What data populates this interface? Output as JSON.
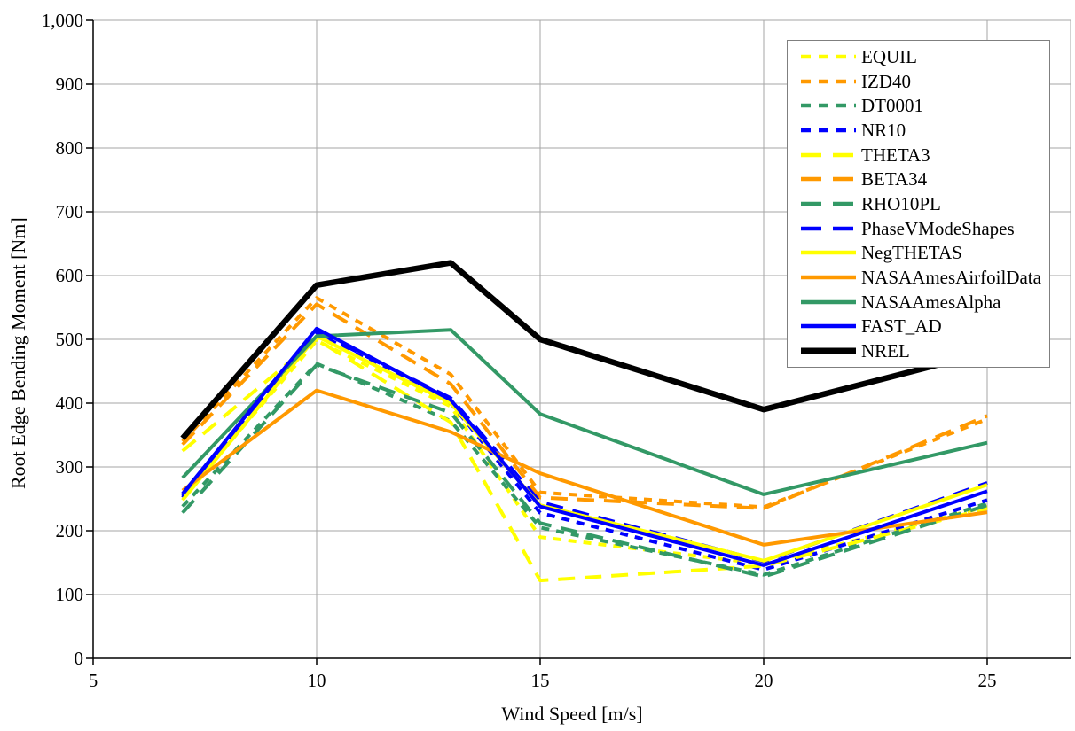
{
  "chart_data": {
    "type": "line",
    "title": "",
    "xlabel": "Wind Speed [m/s]",
    "ylabel": "Root Edge Bending Moment [Nm]",
    "x": [
      7,
      10,
      13,
      15,
      20,
      25
    ],
    "xlim": [
      5,
      27
    ],
    "ylim": [
      0,
      1000
    ],
    "x_ticks": [
      "5",
      "10",
      "15",
      "20",
      "25"
    ],
    "x_tick_values": [
      5,
      10,
      15,
      20,
      25
    ],
    "y_ticks": [
      "0",
      "100",
      "200",
      "300",
      "400",
      "500",
      "600",
      "700",
      "800",
      "900",
      "1,000"
    ],
    "y_tick_values": [
      0,
      100,
      200,
      300,
      400,
      500,
      600,
      700,
      800,
      900,
      1000
    ],
    "grid": true,
    "legend_position": "top-right",
    "gridline_color": "#a6a6a6",
    "axis_color": "#000000",
    "series": [
      {
        "name": "EQUIL",
        "color": "#ffff00",
        "dash": "short",
        "width": 4,
        "values": [
          252,
          498,
          395,
          190,
          148,
          238
        ]
      },
      {
        "name": "IZD40",
        "color": "#ff9900",
        "dash": "short",
        "width": 4,
        "values": [
          340,
          565,
          445,
          260,
          237,
          375
        ]
      },
      {
        "name": "DT0001",
        "color": "#339966",
        "dash": "short",
        "width": 4,
        "values": [
          238,
          462,
          372,
          205,
          131,
          243
        ]
      },
      {
        "name": "NR10",
        "color": "#0000ff",
        "dash": "short",
        "width": 4,
        "values": [
          252,
          510,
          400,
          228,
          139,
          248
        ]
      },
      {
        "name": "THETA3",
        "color": "#ffff00",
        "dash": "long",
        "width": 4,
        "values": [
          325,
          500,
          370,
          122,
          145,
          235
        ]
      },
      {
        "name": "BETA34",
        "color": "#ff9900",
        "dash": "long",
        "width": 4,
        "values": [
          335,
          555,
          430,
          252,
          235,
          380
        ]
      },
      {
        "name": "RHO10PL",
        "color": "#339966",
        "dash": "long",
        "width": 4,
        "values": [
          228,
          460,
          385,
          212,
          128,
          240
        ]
      },
      {
        "name": "PhaseVModeShapes",
        "color": "#0000ff",
        "dash": "long",
        "width": 4,
        "values": [
          255,
          512,
          408,
          245,
          152,
          275
        ]
      },
      {
        "name": "NegTHETAS",
        "color": "#ffff00",
        "dash": "solid",
        "width": 4,
        "values": [
          248,
          505,
          400,
          240,
          153,
          272
        ]
      },
      {
        "name": "NASAAmesAirfoilData",
        "color": "#ff9900",
        "dash": "solid",
        "width": 4,
        "values": [
          263,
          420,
          355,
          290,
          178,
          229
        ]
      },
      {
        "name": "NASAAmesAlpha",
        "color": "#339966",
        "dash": "solid",
        "width": 4,
        "values": [
          283,
          505,
          515,
          383,
          257,
          338
        ]
      },
      {
        "name": "FAST_AD",
        "color": "#0000ff",
        "dash": "solid",
        "width": 4,
        "values": [
          258,
          517,
          405,
          238,
          146,
          262
        ]
      },
      {
        "name": "NREL",
        "color": "#000000",
        "dash": "solid",
        "width": 6.5,
        "values": [
          345,
          585,
          620,
          500,
          390,
          480
        ]
      }
    ]
  }
}
